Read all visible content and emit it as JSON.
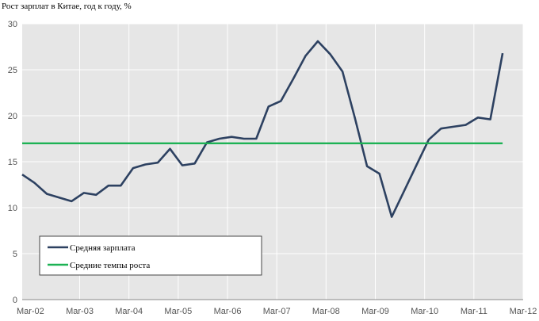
{
  "chart_data": {
    "type": "line",
    "title": "Рост зарплат в Китае, год к году, %",
    "xlabel": "",
    "ylabel": "",
    "ylim": [
      0,
      30
    ],
    "yticks": [
      0,
      5,
      10,
      15,
      20,
      25,
      30
    ],
    "xlim": [
      "2002-01",
      "2012-03"
    ],
    "xticks": [
      "Mar-02",
      "Mar-03",
      "Mar-04",
      "Mar-05",
      "Mar-06",
      "Mar-07",
      "Mar-08",
      "Mar-09",
      "Mar-10",
      "Mar-11",
      "Mar-12"
    ],
    "grid": true,
    "legend": "bottom-left",
    "series": [
      {
        "name": "Средняя зарплата",
        "color": "#2d4161",
        "x": [
          "2002-01",
          "2002-04",
          "2002-07",
          "2002-10",
          "2003-01",
          "2003-04",
          "2003-07",
          "2003-10",
          "2004-01",
          "2004-04",
          "2004-07",
          "2004-10",
          "2005-01",
          "2005-04",
          "2005-07",
          "2005-10",
          "2006-01",
          "2006-04",
          "2006-07",
          "2006-10",
          "2007-01",
          "2007-04",
          "2007-07",
          "2007-10",
          "2008-01",
          "2008-04",
          "2008-07",
          "2008-10",
          "2009-01",
          "2009-04",
          "2009-07",
          "2009-10",
          "2010-01",
          "2010-04",
          "2010-07",
          "2010-10",
          "2011-01",
          "2011-04",
          "2011-07",
          "2011-10"
        ],
        "values": [
          13.6,
          12.7,
          11.5,
          11.1,
          10.7,
          11.6,
          11.4,
          12.4,
          12.4,
          14.3,
          14.7,
          14.9,
          16.4,
          14.6,
          14.8,
          17.1,
          17.5,
          17.7,
          17.5,
          17.5,
          21.0,
          21.6,
          24.0,
          26.5,
          28.1,
          26.7,
          24.8,
          19.8,
          14.5,
          13.7,
          9.0,
          11.8,
          14.6,
          17.4,
          18.6,
          18.8,
          19.0,
          19.8,
          19.6,
          26.8
        ]
      },
      {
        "name": "Средние темпы роста",
        "color": "#1db254",
        "x": [
          "2002-01",
          "2011-10"
        ],
        "values": [
          17.0,
          17.0
        ]
      }
    ]
  }
}
